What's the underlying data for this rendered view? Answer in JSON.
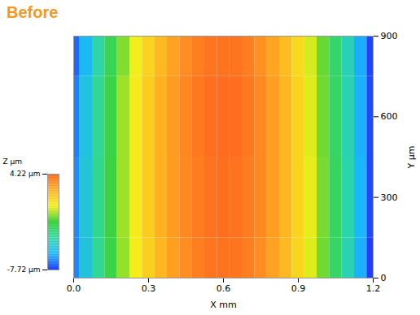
{
  "chart_data": {
    "type": "heatmap",
    "title": "Before",
    "x_label": "X mm",
    "y_label": "Y µm",
    "z_label": "Z µm",
    "x": [
      0,
      0.05,
      0.1,
      0.15,
      0.2,
      0.25,
      0.3,
      0.35,
      0.4,
      0.45,
      0.5,
      0.55,
      0.6,
      0.65,
      0.7,
      0.75,
      0.8,
      0.85,
      0.9,
      0.95,
      1.0,
      1.05,
      1.1,
      1.15,
      1.2
    ],
    "y": [
      0,
      300,
      600,
      900
    ],
    "z": [
      [
        -6.5,
        -5.0,
        -3.5,
        -2.0,
        -0.8,
        0.3,
        1.2,
        2.0,
        2.7,
        3.2,
        3.6,
        3.9,
        4.0,
        3.9,
        3.6,
        3.2,
        2.6,
        1.9,
        1.0,
        0.0,
        -1.2,
        -2.6,
        -4.1,
        -5.8,
        -7.7
      ],
      [
        -6.4,
        -4.9,
        -3.4,
        -1.9,
        -0.7,
        0.4,
        1.3,
        2.1,
        2.8,
        3.3,
        3.7,
        4.0,
        4.1,
        4.0,
        3.7,
        3.3,
        2.7,
        2.0,
        1.1,
        0.1,
        -1.1,
        -2.5,
        -4.0,
        -5.7,
        -7.5
      ],
      [
        -6.6,
        -5.1,
        -3.5,
        -2.0,
        -0.7,
        0.4,
        1.3,
        2.1,
        2.8,
        3.4,
        3.8,
        4.1,
        4.2,
        4.1,
        3.8,
        3.3,
        2.7,
        2.0,
        1.1,
        0.0,
        -1.2,
        -2.6,
        -4.1,
        -5.8,
        -7.5
      ],
      [
        -7.0,
        -5.5,
        -3.9,
        -2.3,
        -1.0,
        0.2,
        1.1,
        1.9,
        2.6,
        3.2,
        3.6,
        3.9,
        4.0,
        3.9,
        3.6,
        3.1,
        2.5,
        1.8,
        0.9,
        -0.1,
        -1.3,
        -2.7,
        -4.2,
        -5.9,
        -7.6
      ]
    ],
    "xlim": [
      0,
      1.2
    ],
    "xticks": [
      {
        "value": 0,
        "label": "0.0"
      },
      0.3,
      0.6,
      0.9,
      1.2
    ],
    "ylim": [
      0,
      900
    ],
    "yticks": [
      0,
      300,
      600,
      900
    ],
    "colorbar_range": [
      -7.72,
      4.22
    ],
    "colorbar_ticks": [
      {
        "value": 4.22,
        "label": "4.22 µm"
      },
      {
        "value": -7.72,
        "label": "-7.72 µm"
      }
    ]
  }
}
